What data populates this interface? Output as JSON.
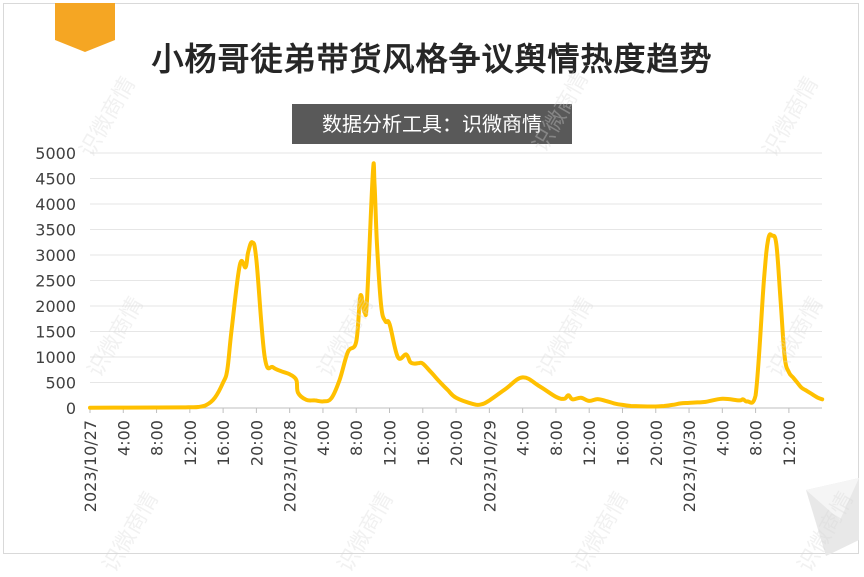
{
  "title": "小杨哥徒弟带货风格争议舆情热度趋势",
  "subtitle": "数据分析工具：识微商情",
  "watermark": "识微商情",
  "colors": {
    "line": "#FFC000",
    "accent": "#F5A623",
    "title": "#262626",
    "subtitle_bg": "#595959",
    "grid": "#e6e6e6"
  },
  "chart_data": {
    "type": "line",
    "title": "小杨哥徒弟带货风格争议舆情热度趋势",
    "ylim": [
      0,
      5000
    ],
    "y_ticks": [
      "0",
      "500",
      "1000",
      "1500",
      "2000",
      "2500",
      "3000",
      "3500",
      "4000",
      "4500",
      "5000"
    ],
    "x_tick_labels": [
      "2023/10/27",
      "4:00",
      "8:00",
      "12:00",
      "16:00",
      "20:00",
      "2023/10/28",
      "4:00",
      "8:00",
      "12:00",
      "16:00",
      "20:00",
      "2023/10/29",
      "4:00",
      "8:00",
      "12:00",
      "16:00",
      "20:00",
      "2023/10/30",
      "4:00",
      "8:00",
      "12:00"
    ],
    "grid": true,
    "series": [
      {
        "x_hours": [
          0,
          4,
          8,
          11,
          12,
          13,
          14,
          15,
          16,
          16.5,
          17,
          18,
          18.7,
          19,
          19.5,
          20,
          21,
          22,
          23,
          24,
          24.8,
          25,
          26,
          27,
          28,
          29,
          30,
          31,
          32,
          32.5,
          33,
          33.3,
          34,
          34.2,
          34.5,
          35,
          35.5,
          36,
          37,
          38,
          38.5,
          39,
          39.5,
          40,
          41,
          42,
          43,
          44,
          46,
          47,
          48,
          50,
          52,
          54,
          56,
          57,
          57.5,
          58,
          59,
          60,
          61,
          62,
          63,
          64,
          65,
          66,
          67,
          68,
          69,
          70,
          71,
          72,
          73,
          74,
          76,
          78,
          78.5,
          79,
          80,
          81,
          81.5,
          82,
          82.5,
          83,
          83.5,
          84,
          84.5,
          85,
          85.5,
          86,
          86.5,
          87,
          87.5,
          88
        ],
        "values": [
          5,
          8,
          10,
          12,
          15,
          20,
          60,
          200,
          500,
          750,
          1500,
          2800,
          2760,
          3050,
          3250,
          2900,
          1000,
          800,
          720,
          660,
          550,
          300,
          160,
          150,
          130,
          190,
          550,
          1100,
          1300,
          2200,
          1870,
          2150,
          4620,
          4400,
          3200,
          2000,
          1700,
          1650,
          1000,
          1050,
          900,
          870,
          880,
          870,
          700,
          520,
          350,
          200,
          80,
          70,
          150,
          380,
          600,
          430,
          220,
          180,
          250,
          170,
          200,
          140,
          175,
          140,
          90,
          60,
          40,
          35,
          30,
          30,
          40,
          60,
          90,
          100,
          110,
          120,
          180,
          150,
          170,
          130,
          250,
          2500,
          3300,
          3380,
          3200,
          2100,
          1000,
          700,
          600,
          500,
          400,
          350,
          300,
          250,
          200,
          170
        ],
        "name": ""
      }
    ]
  }
}
